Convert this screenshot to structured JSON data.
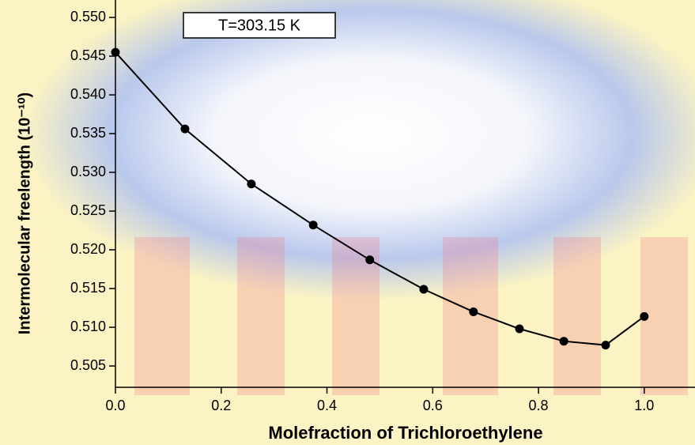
{
  "chart_data": {
    "type": "line",
    "xlabel": "Molefraction of Trichloroethylene",
    "ylabel": "Intermolecular freelength (10⁻¹⁰)",
    "annotation": "T=303.15 K",
    "x": [
      0.0,
      0.1315,
      0.257,
      0.374,
      0.481,
      0.583,
      0.677,
      0.764,
      0.848,
      0.927,
      1.0
    ],
    "values": [
      0.5455,
      0.5356,
      0.5285,
      0.5232,
      0.5187,
      0.5149,
      0.512,
      0.5098,
      0.5082,
      0.5077,
      0.5114
    ],
    "color": "#000000",
    "xlim": [
      0,
      1.096
    ],
    "ylim": [
      0.50225,
      0.55225
    ],
    "xticks": [
      {
        "value": 0,
        "label": "0.0"
      },
      0.2,
      0.4,
      0.6,
      0.8,
      {
        "value": 1,
        "label": "1.0"
      }
    ],
    "yticks": [
      0.505,
      {
        "value": 0.51,
        "label": "0.510"
      },
      0.515,
      {
        "value": 0.52,
        "label": "0.520"
      },
      0.525,
      {
        "value": 0.53,
        "label": "0.530"
      },
      0.535,
      {
        "value": 0.54,
        "label": "0.540"
      },
      0.545,
      {
        "value": 0.55,
        "label": "0.550"
      }
    ]
  }
}
